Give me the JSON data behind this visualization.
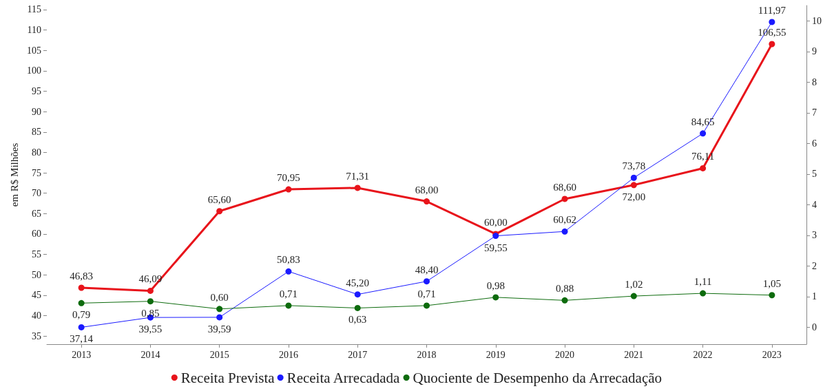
{
  "chart_data": {
    "type": "line",
    "categories": [
      "2013",
      "2014",
      "2015",
      "2016",
      "2017",
      "2018",
      "2019",
      "2020",
      "2021",
      "2022",
      "2023"
    ],
    "ylabel": "em R$ Milhões",
    "ylim": [
      33,
      116
    ],
    "yticks": [
      35,
      40,
      45,
      50,
      55,
      60,
      65,
      70,
      75,
      80,
      85,
      90,
      95,
      100,
      105,
      110,
      115
    ],
    "y2lim": [
      -0.55,
      10.5
    ],
    "y2ticks": [
      0,
      1,
      2,
      3,
      4,
      5,
      6,
      7,
      8,
      9,
      10
    ],
    "series": [
      {
        "name": "Receita Prevista",
        "color": "#e8141b",
        "values": [
          46.83,
          46.09,
          65.6,
          70.95,
          71.31,
          68.0,
          60.0,
          68.6,
          72.0,
          76.11,
          106.55
        ],
        "value_labels": [
          "46,83",
          "46,09",
          "65,60",
          "70,95",
          "71,31",
          "68,00",
          "60,00",
          "68,60",
          "72,00",
          "76,11",
          "106,55"
        ]
      },
      {
        "name": "Receita Arrecadada",
        "color": "#1a1aff",
        "values": [
          37.14,
          39.55,
          39.59,
          50.83,
          45.2,
          48.4,
          59.55,
          60.62,
          73.78,
          84.65,
          111.97
        ],
        "value_labels": [
          "37,14",
          "39,55",
          "39,59",
          "50,83",
          "45,20",
          "48,40",
          "59,55",
          "60,62",
          "73,78",
          "84,65",
          "111,97"
        ]
      },
      {
        "name": "Quociente de Desempenho da Arrecadação",
        "color": "#0d6b0d",
        "axis": "y2",
        "values": [
          0.79,
          0.85,
          0.6,
          0.71,
          0.63,
          0.71,
          0.98,
          0.88,
          1.02,
          1.11,
          1.05
        ],
        "value_labels": [
          "0,79",
          "0,85",
          "0,60",
          "0,71",
          "0,63",
          "0,71",
          "0,98",
          "0,88",
          "1,02",
          "1,11",
          "1,05"
        ]
      }
    ],
    "marker": "circle",
    "legend": "bottom",
    "grid": false
  }
}
